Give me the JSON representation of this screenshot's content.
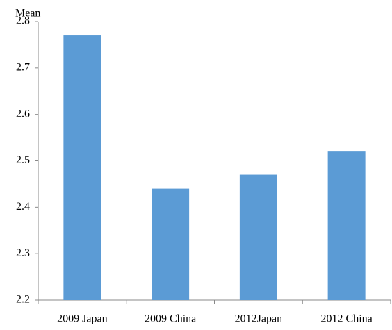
{
  "chart_data": {
    "type": "bar",
    "y_label": "Mean",
    "categories": [
      "2009 Japan",
      "2009 China",
      "2012Japan",
      "2012 China"
    ],
    "values": [
      2.77,
      2.44,
      2.47,
      2.52
    ],
    "color": "#5b9bd5",
    "ylim": [
      2.2,
      2.8
    ],
    "yticks": [
      2.2,
      2.3,
      2.4,
      2.5,
      2.6,
      2.7,
      2.8
    ],
    "grid": false
  }
}
